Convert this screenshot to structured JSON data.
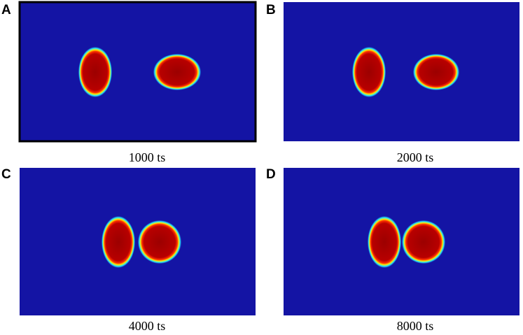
{
  "panels": [
    {
      "label": "A",
      "caption": "1000 ts"
    },
    {
      "label": "B",
      "caption": "2000 ts"
    },
    {
      "label": "C",
      "caption": "4000 ts"
    },
    {
      "label": "D",
      "caption": "8000 ts"
    }
  ]
}
